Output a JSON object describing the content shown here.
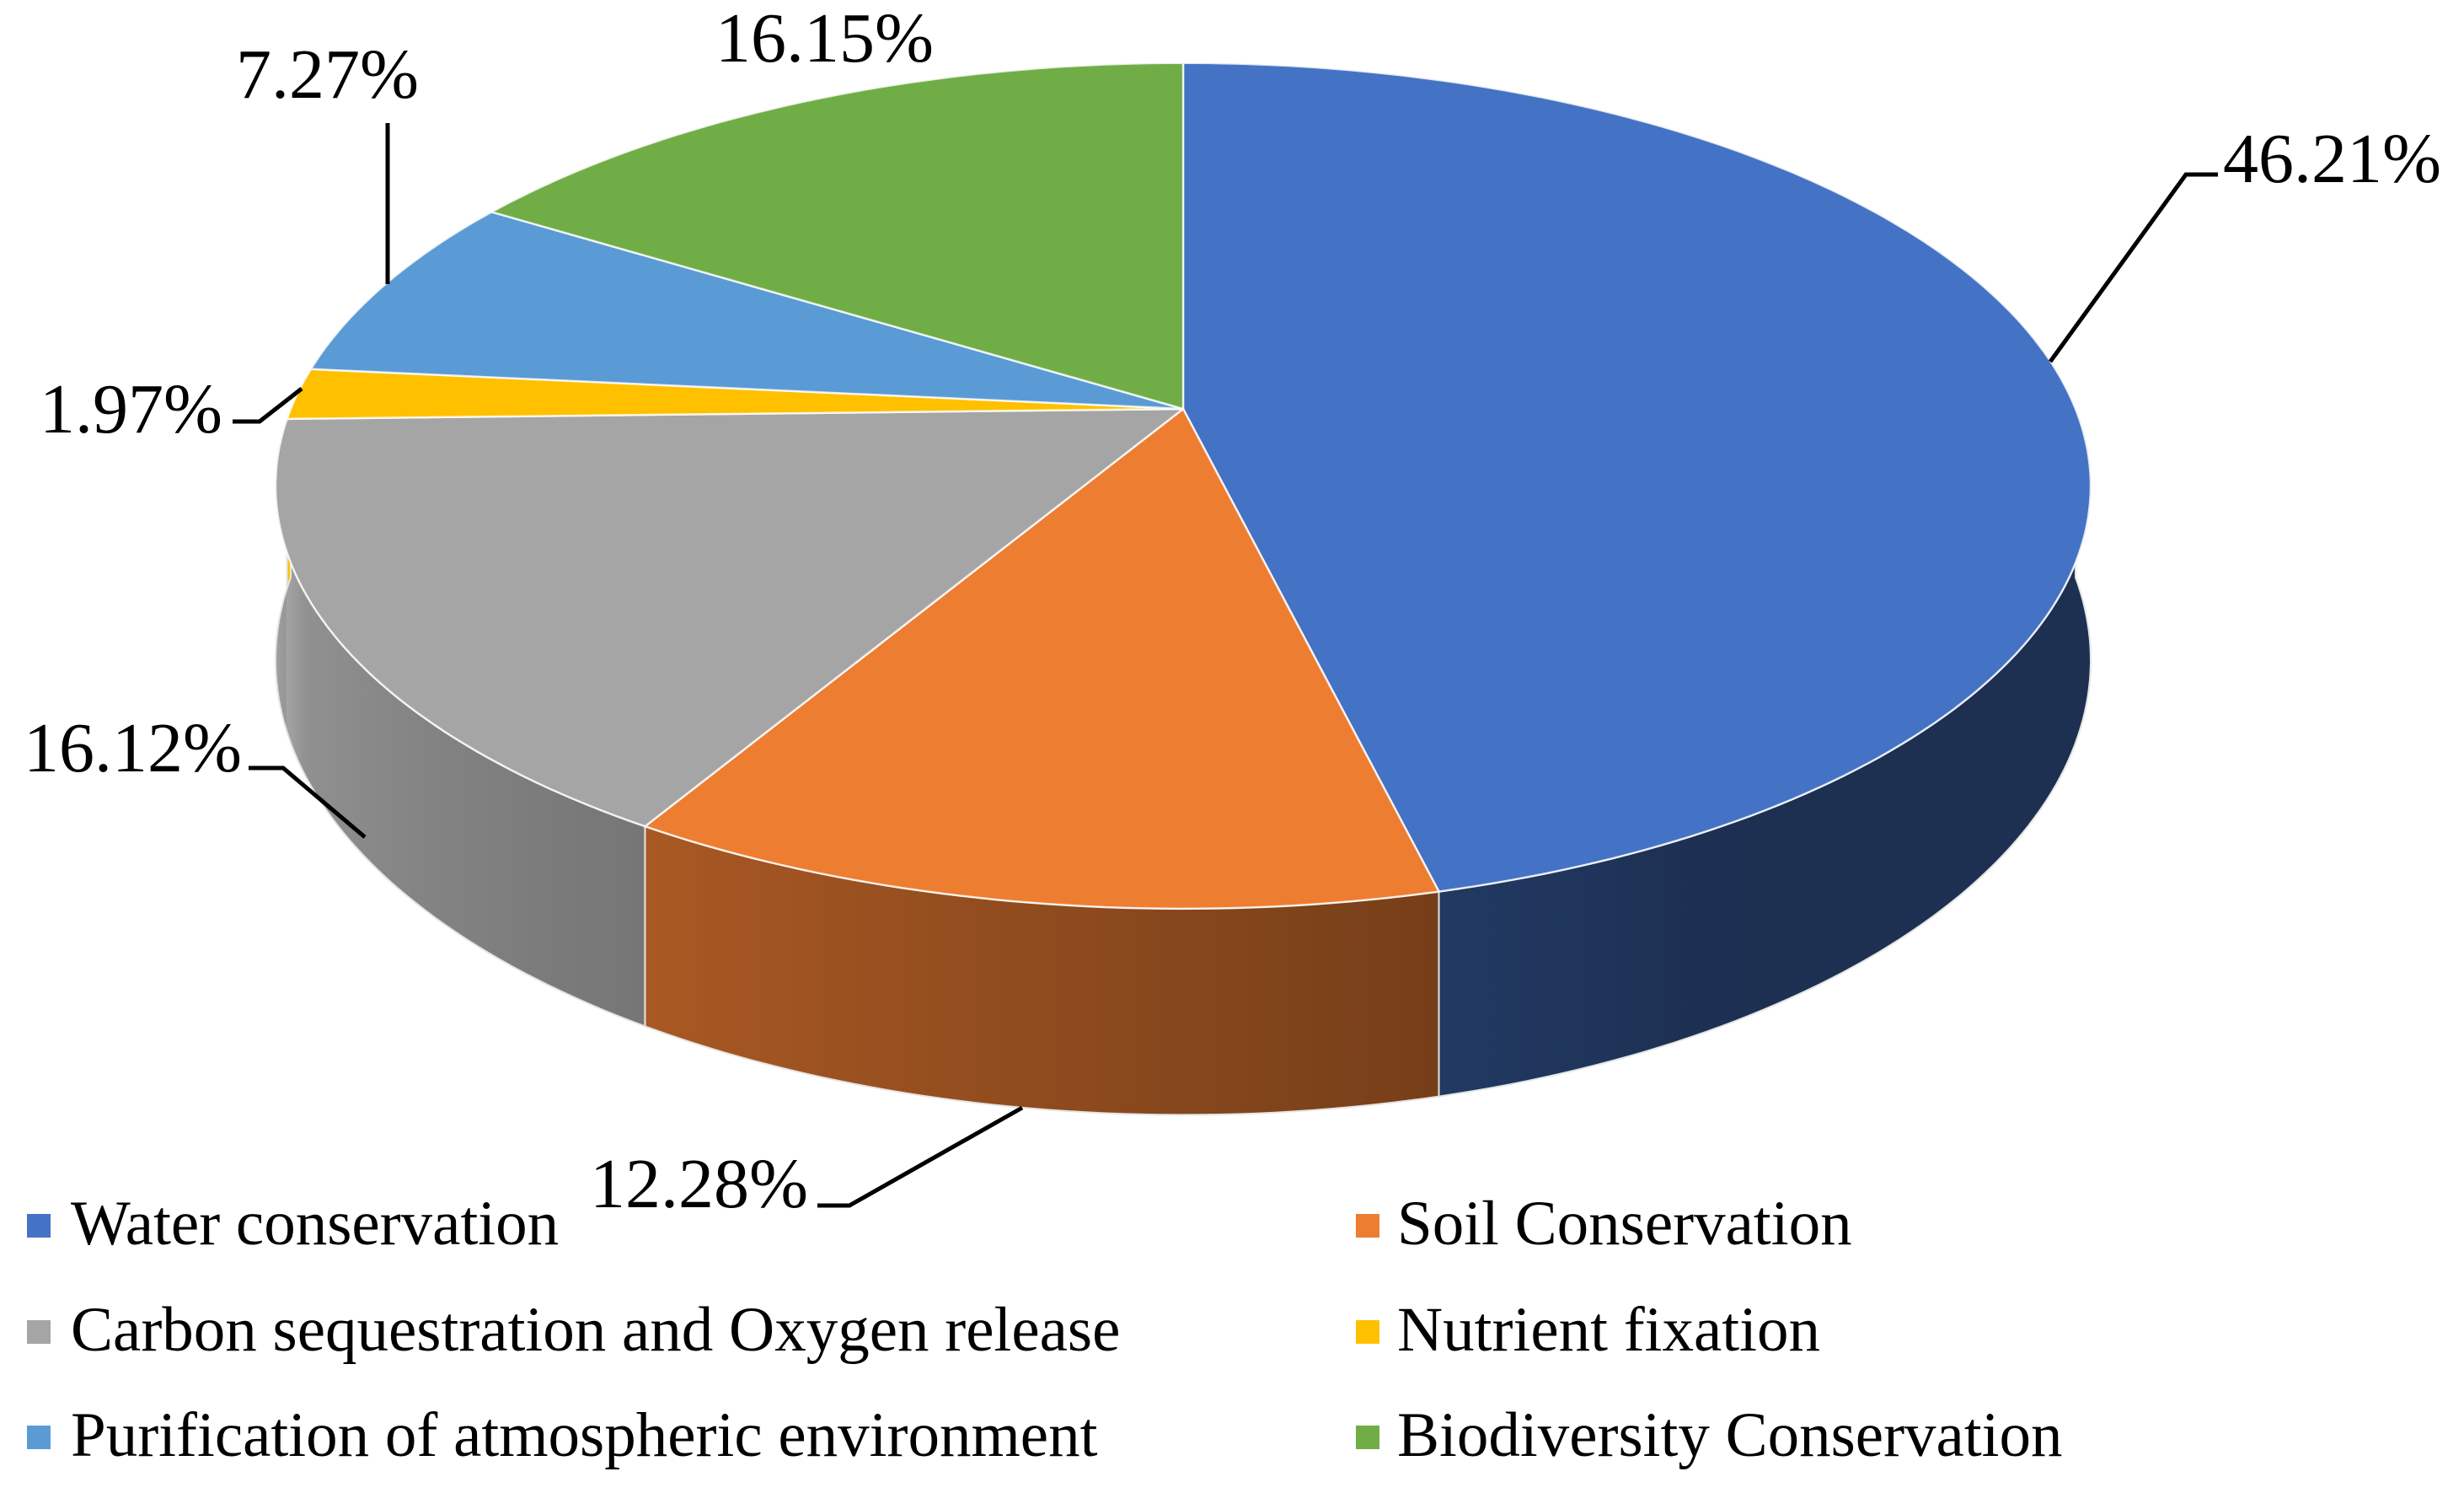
{
  "chart_data": {
    "type": "pie",
    "title": "",
    "categories": [
      "Water conservation",
      "Soil Conservation",
      "Carbon sequestration and Oxygen release",
      "Nutrient fixation",
      "Purification of atmospheric environment",
      "Biodiversity Conservation"
    ],
    "values": [
      46.21,
      12.28,
      16.12,
      1.97,
      7.27,
      16.15
    ],
    "data_labels": [
      "46.21%",
      "12.28%",
      "16.12%",
      "1.97%",
      "7.27%",
      "16.15%"
    ],
    "colors": [
      "#4472C4",
      "#ED7D31",
      "#A5A5A5",
      "#FFC000",
      "#5B9BD5",
      "#70AD47"
    ],
    "legend_position": "bottom"
  }
}
